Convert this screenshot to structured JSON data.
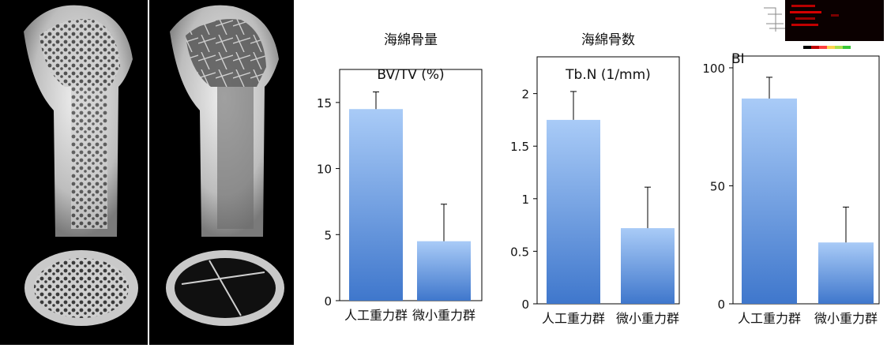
{
  "chart_data": [
    {
      "type": "bar",
      "title": "海綿骨量",
      "subtitle": "BV/TV (%)",
      "categories": [
        "人工重力群",
        "微小重力群"
      ],
      "values": [
        14.5,
        4.5
      ],
      "errors": [
        1.3,
        2.8
      ],
      "ylim": [
        0,
        17.5
      ],
      "yticks": [
        0,
        5,
        10,
        15
      ],
      "ytick_labels": [
        "0",
        "5",
        "10",
        "15"
      ],
      "grid": false
    },
    {
      "type": "bar",
      "title": "海綿骨数",
      "subtitle": "Tb.N (1/mm)",
      "categories": [
        "人工重力群",
        "微小重力群"
      ],
      "values": [
        1.75,
        0.72
      ],
      "errors": [
        0.27,
        0.39
      ],
      "ylim": [
        0,
        2.35
      ],
      "yticks": [
        0,
        0.5,
        1,
        1.5,
        2
      ],
      "ytick_labels": [
        "0",
        "0.5",
        "1",
        "1.5",
        "2"
      ],
      "grid": false
    },
    {
      "type": "bar",
      "title": "BI",
      "subtitle": "",
      "categories": [
        "人工重力群",
        "微小重力群"
      ],
      "values": [
        87,
        26
      ],
      "errors": [
        9,
        15
      ],
      "ylim": [
        0,
        105
      ],
      "yticks": [
        0,
        50,
        100
      ],
      "ytick_labels": [
        "0",
        "50",
        "100"
      ],
      "grid": false
    }
  ],
  "colors": {
    "bar_top": "#a9cbf7",
    "bar_bottom": "#3f77cc",
    "photo_background": "#000000",
    "bone": "#d9d9d9"
  },
  "images": [
    {
      "name": "bone-ct-artificial-gravity",
      "description": "3D micro-CT image of femur, artificial gravity group"
    },
    {
      "name": "bone-ct-microgravity",
      "description": "3D micro-CT image of femur, microgravity group"
    }
  ]
}
